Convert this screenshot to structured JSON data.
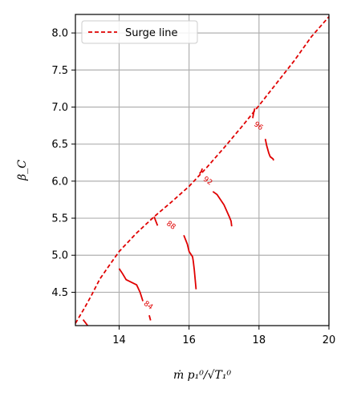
{
  "chart_data": {
    "type": "line",
    "xlabel": "ṁ p₁⁰/√T₁⁰",
    "ylabel": "β_C",
    "xlim": [
      12.75,
      20.0
    ],
    "ylim": [
      4.05,
      8.25
    ],
    "xticks": [
      14,
      16,
      18,
      20
    ],
    "yticks": [
      4.5,
      5.0,
      5.5,
      6.0,
      6.5,
      7.0,
      7.5,
      8.0
    ],
    "xtick_labels": [
      "14",
      "16",
      "18",
      "20"
    ],
    "ytick_labels": [
      "4.5",
      "5.0",
      "5.5",
      "6.0",
      "6.5",
      "7.0",
      "7.5",
      "8.0"
    ],
    "grid": true,
    "legend": {
      "placement": "top-left",
      "entries": [
        "Surge line"
      ]
    },
    "colors": {
      "series": "#e00000",
      "grid": "#b0b0b0",
      "axis": "#000000"
    },
    "series": [
      {
        "name": "Surge line",
        "style": "dashed",
        "x": [
          12.75,
          13.0,
          13.2,
          13.45,
          13.7,
          14.0,
          14.5,
          15.0,
          15.5,
          16.0,
          16.5,
          17.0,
          17.5,
          18.0,
          18.5,
          19.0,
          19.5,
          20.0
        ],
        "y": [
          4.08,
          4.28,
          4.45,
          4.68,
          4.85,
          5.05,
          5.3,
          5.52,
          5.72,
          5.93,
          6.18,
          6.45,
          6.73,
          7.02,
          7.32,
          7.62,
          7.95,
          8.22
        ]
      }
    ],
    "contours": [
      {
        "label": "84",
        "label_at": [
          14.8,
          4.3
        ],
        "segments": [
          {
            "x": [
              12.97,
              13.1
            ],
            "y": [
              4.13,
              4.05
            ]
          },
          {
            "x": [
              14.0,
              14.1,
              14.2,
              14.5,
              14.6,
              14.68
            ],
            "y": [
              4.82,
              4.75,
              4.67,
              4.6,
              4.5,
              4.38
            ]
          },
          {
            "x": [
              14.86,
              14.9
            ],
            "y": [
              4.19,
              4.12
            ]
          }
        ]
      },
      {
        "label": "88",
        "label_at": [
          15.45,
          5.38
        ],
        "segments": [
          {
            "x": [
              15.0,
              15.05,
              15.1
            ],
            "y": [
              5.52,
              5.46,
              5.4
            ]
          },
          {
            "x": [
              15.85,
              15.95,
              16.0,
              16.1,
              16.12,
              16.15,
              16.2
            ],
            "y": [
              5.27,
              5.15,
              5.05,
              4.98,
              4.92,
              4.8,
              4.54
            ]
          }
        ]
      },
      {
        "label": "92",
        "label_at": [
          16.5,
          5.98
        ],
        "segments": [
          {
            "x": [
              16.3,
              16.35,
              16.38
            ],
            "y": [
              6.1,
              6.13,
              6.17
            ]
          },
          {
            "x": [
              16.68,
              16.8,
              17.0,
              17.15,
              17.2,
              17.22
            ],
            "y": [
              5.86,
              5.82,
              5.68,
              5.52,
              5.46,
              5.39
            ]
          }
        ]
      },
      {
        "label": "96",
        "label_at": [
          17.95,
          6.72
        ],
        "segments": [
          {
            "x": [
              17.82,
              17.85,
              17.88
            ],
            "y": [
              6.85,
              6.93,
              6.98
            ]
          },
          {
            "x": [
              18.18,
              18.22,
              18.28,
              18.32,
              18.4,
              18.42
            ],
            "y": [
              6.57,
              6.48,
              6.38,
              6.33,
              6.3,
              6.28
            ]
          }
        ]
      }
    ]
  }
}
